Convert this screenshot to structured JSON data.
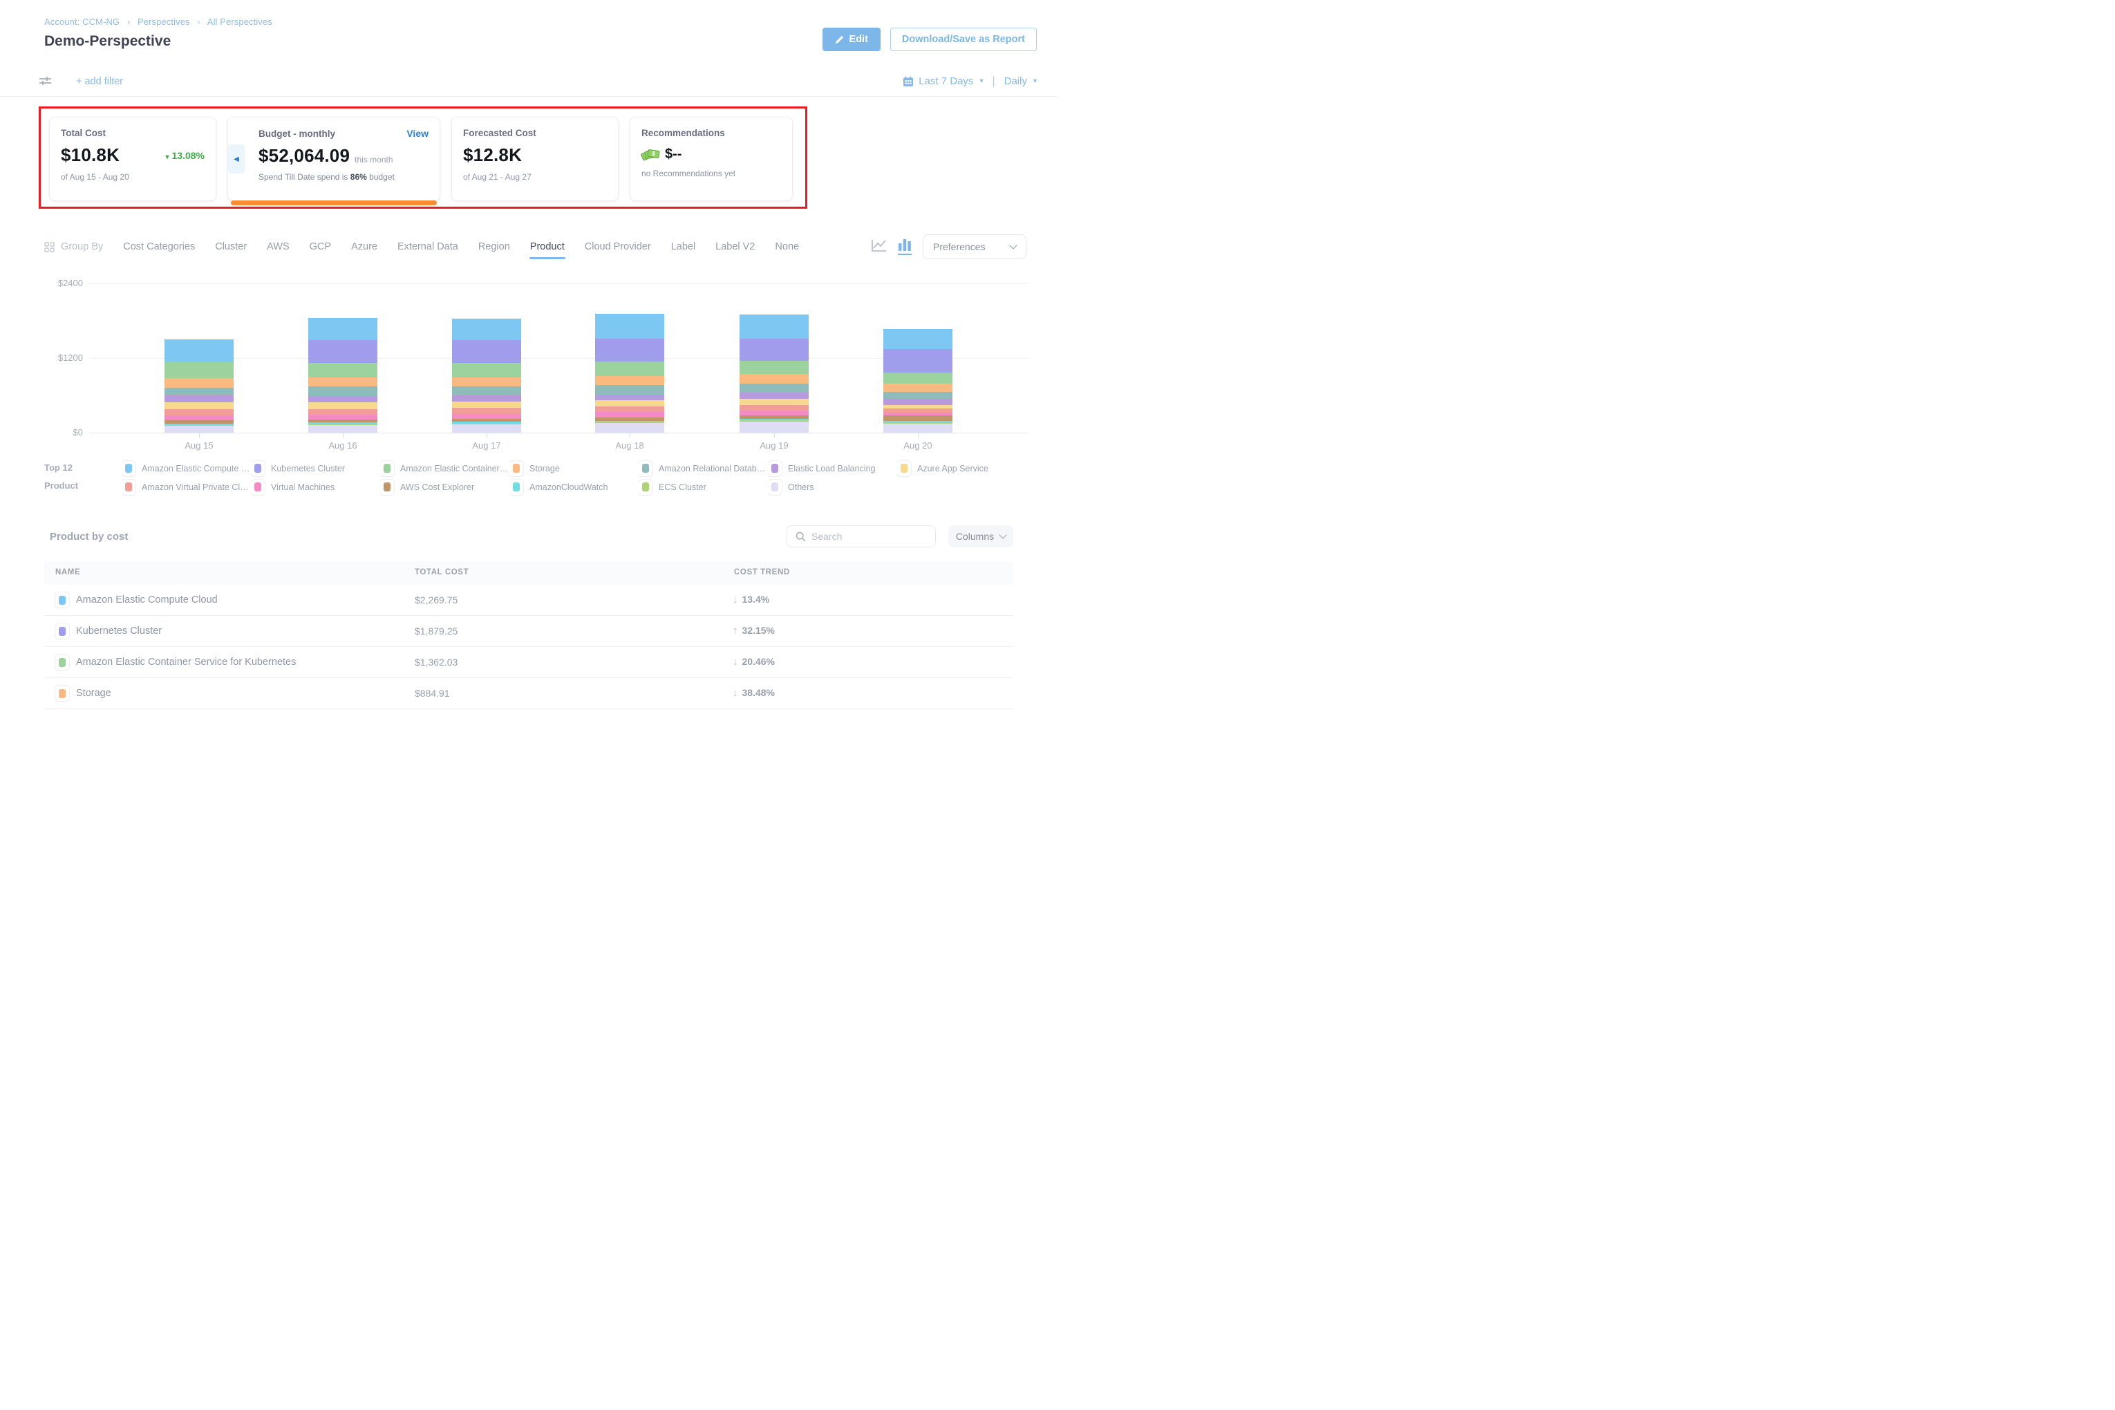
{
  "header": {
    "breadcrumb": [
      "Account: CCM-NG",
      "Perspectives",
      "All Perspectives"
    ],
    "title": "Demo-Perspective",
    "edit_button": "Edit",
    "download_button": "Download/Save as Report"
  },
  "filter_bar": {
    "add_filter": "+ add filter",
    "time_range": "Last 7 Days",
    "granularity": "Daily"
  },
  "cards": {
    "total_cost": {
      "title": "Total Cost",
      "value": "$10.8K",
      "trend": "13.08%",
      "trend_direction": "down",
      "trend_color": "#3fae49",
      "period": "of Aug 15 - Aug 20"
    },
    "budget": {
      "title": "Budget - monthly",
      "view_link": "View",
      "value": "$52,064.09",
      "value_suffix": "this month",
      "status_prefix": "Spend Till Date spend is",
      "status_pct": "86%",
      "status_suffix": "budget",
      "bar_color": "#f98d33"
    },
    "forecasted": {
      "title": "Forecasted Cost",
      "value": "$12.8K",
      "period": "of Aug 21 - Aug 27"
    },
    "recommendations": {
      "title": "Recommendations",
      "value": "$--",
      "subtitle": "no Recommendations yet"
    }
  },
  "group_by": {
    "label": "Group By",
    "tabs": [
      "Cost Categories",
      "Cluster",
      "AWS",
      "GCP",
      "Azure",
      "External Data",
      "Region",
      "Product",
      "Cloud Provider",
      "Label",
      "Label V2",
      "None"
    ],
    "selected": "Product"
  },
  "toolbar": {
    "preferences_label": "Preferences"
  },
  "chart_data": {
    "type": "bar",
    "stacked": true,
    "title": "",
    "xlabel": "",
    "ylabel": "",
    "x": [
      "Aug 15",
      "Aug 16",
      "Aug 17",
      "Aug 18",
      "Aug 19",
      "Aug 20"
    ],
    "ylim": [
      0,
      2400
    ],
    "yticks": [
      {
        "value": 0,
        "label": "$0"
      },
      {
        "value": 1200,
        "label": "$1200"
      },
      {
        "value": 2400,
        "label": "$2400"
      }
    ],
    "grid": true,
    "legend_position": "bottom",
    "series_note": "stack order bottom to top, values in USD estimated from axis",
    "series": [
      {
        "name": "Others",
        "color": "#dfddf6",
        "values": [
          111,
          120,
          135,
          160,
          180,
          145
        ]
      },
      {
        "name": "ECS Cluster",
        "color": "#aed374",
        "values": [
          6,
          15,
          15,
          15,
          20,
          25
        ]
      },
      {
        "name": "AmazonCloudWatch",
        "color": "#6fdde2",
        "values": [
          28,
          28,
          25,
          20,
          20,
          15
        ]
      },
      {
        "name": "AWS Cost Explorer",
        "color": "#c09468",
        "values": [
          55,
          46,
          45,
          50,
          55,
          90
        ]
      },
      {
        "name": "Virtual Machines",
        "color": "#f48bc6",
        "values": [
          83,
          83,
          85,
          85,
          80,
          45
        ]
      },
      {
        "name": "Amazon Virtual Private Cloud",
        "color": "#f29d97",
        "values": [
          92,
          92,
          95,
          95,
          95,
          75
        ]
      },
      {
        "name": "Azure App Service",
        "color": "#f7d98d",
        "values": [
          111,
          111,
          105,
          100,
          100,
          55
        ]
      },
      {
        "name": "Elastic Load Balancing",
        "color": "#b79ade",
        "values": [
          111,
          92,
          95,
          90,
          95,
          90
        ]
      },
      {
        "name": "Amazon Relational Database Service",
        "color": "#8fbcba",
        "values": [
          129,
          157,
          150,
          150,
          140,
          115
        ]
      },
      {
        "name": "Storage",
        "color": "#f9b97f",
        "values": [
          157,
          147,
          140,
          145,
          165,
          130
        ]
      },
      {
        "name": "Amazon Elastic Container Service for Kubernetes",
        "color": "#9bd29e",
        "values": [
          250,
          230,
          235,
          235,
          210,
          185
        ]
      },
      {
        "name": "Kubernetes Cluster",
        "color": "#9f9dec",
        "values": [
          0,
          369,
          365,
          370,
          355,
          380
        ]
      },
      {
        "name": "Amazon Elastic Compute Cloud",
        "color": "#7cc8f2",
        "values": [
          370,
          359,
          350,
          405,
          390,
          320
        ]
      }
    ],
    "totals_estimated": [
      1503,
      1849,
      1840,
      1920,
      1905,
      1670
    ]
  },
  "legend": {
    "label_line1": "Top 12",
    "label_line2": "Product",
    "items": [
      {
        "name": "Amazon Elastic Compute Clo...",
        "color": "#7cc8f2"
      },
      {
        "name": "Kubernetes Cluster",
        "color": "#9f9dec"
      },
      {
        "name": "Amazon Elastic Container Se...",
        "color": "#9bd29e"
      },
      {
        "name": "Storage",
        "color": "#f9b97f"
      },
      {
        "name": "Amazon Relational Database ...",
        "color": "#8fbcba"
      },
      {
        "name": "Elastic Load Balancing",
        "color": "#b79ade"
      },
      {
        "name": "Azure App Service",
        "color": "#f7d98d"
      },
      {
        "name": "Amazon Virtual Private Cloud",
        "color": "#f29d97"
      },
      {
        "name": "Virtual Machines",
        "color": "#f48bc6"
      },
      {
        "name": "AWS Cost Explorer",
        "color": "#c09468"
      },
      {
        "name": "AmazonCloudWatch",
        "color": "#6fdde2"
      },
      {
        "name": "ECS Cluster",
        "color": "#aed374"
      },
      {
        "name": "Others",
        "color": "#dfddf6"
      }
    ]
  },
  "table": {
    "heading": "Product by cost",
    "search_placeholder": "Search",
    "columns_button": "Columns",
    "headers": [
      "NAME",
      "TOTAL COST",
      "COST TREND"
    ],
    "rows": [
      {
        "name": "Amazon Elastic Compute Cloud",
        "color": "#7cc8f2",
        "total": "$2,269.75",
        "trend": "13.4%",
        "direction": "down"
      },
      {
        "name": "Kubernetes Cluster",
        "color": "#9f9dec",
        "total": "$1,879.25",
        "trend": "32.15%",
        "direction": "up"
      },
      {
        "name": "Amazon Elastic Container Service for Kubernetes",
        "color": "#9bd29e",
        "total": "$1,362.03",
        "trend": "20.46%",
        "direction": "down"
      },
      {
        "name": "Storage",
        "color": "#f9b97f",
        "total": "$884.91",
        "trend": "38.48%",
        "direction": "down"
      }
    ]
  }
}
